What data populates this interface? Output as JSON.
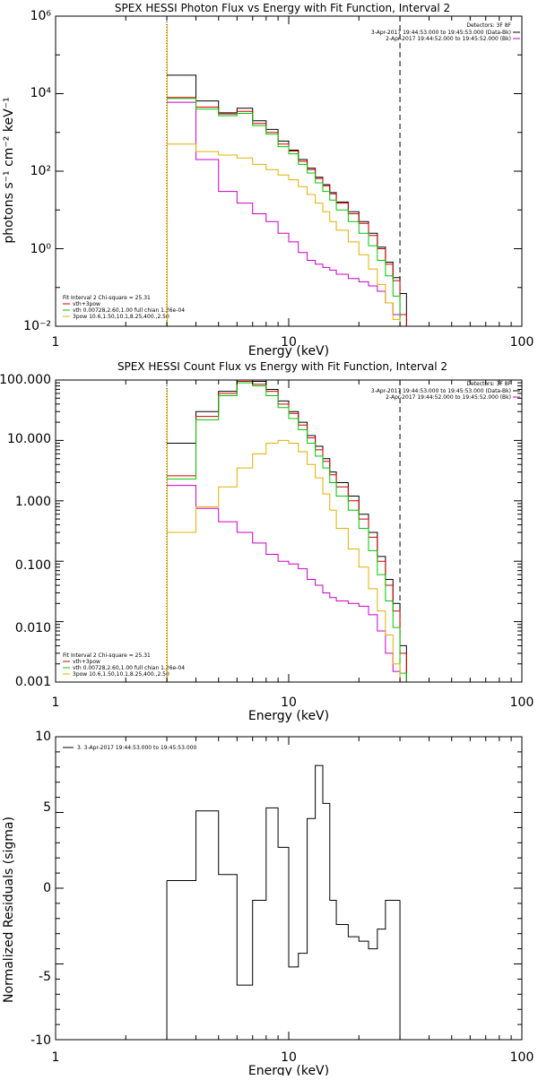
{
  "chart_data": [
    {
      "type": "line",
      "title": "SPEX HESSI Photon Flux vs Energy with Fit Function, Interval 2",
      "xlabel": "Energy (keV)",
      "ylabel": "photons s⁻¹ cm⁻² keV⁻¹",
      "xscale": "log",
      "yscale": "log",
      "xlim": [
        1,
        100
      ],
      "ylim": [
        0.01,
        1000000
      ],
      "x_tick_labels": [
        "1",
        "10",
        "100"
      ],
      "y_tick_labels": [
        "10⁻²",
        "10⁰",
        "10²",
        "10⁴",
        "10⁶"
      ],
      "legend_top_right": [
        "Detectors: 3F 8F",
        "3-Apr-2017 19:44:53.000 to 19:45:53.000 (Data-Bk)",
        "2-Apr-2017 19:44:52.000 to 19:45:52.000 (Bk)"
      ],
      "legend_bottom_left": [
        "Fit Interval 2   Chi-square = 25.31",
        "vth+3pow",
        "vth 0.00728,2.60,1.00  full chian 1.26e-04",
        "3pow 10.6,1.50,10.1,8.25,400.,2.50"
      ],
      "grid": false,
      "edges": [
        3.0,
        3.5,
        4.0,
        4.5,
        5.0,
        5.5,
        6.0,
        6.5,
        7.0,
        7.5,
        8.0,
        8.5,
        9.0,
        9.5,
        10.0,
        11.0,
        12.0,
        13.0,
        14.0,
        15.0,
        16.0,
        18.0,
        20.0,
        22.0,
        24.0,
        26.0,
        28.0,
        30.0,
        32.0
      ],
      "series": [
        {
          "name": "3-Apr-2017 19:44:53.000 to 19:45:53.000 (Data-Bk)",
          "color": "#000000",
          "values": [
            30000,
            30000,
            6500,
            6500,
            3200,
            3200,
            4200,
            4200,
            2000,
            2000,
            1200,
            1200,
            600,
            600,
            350,
            200,
            120,
            70,
            45,
            28,
            16,
            9,
            5,
            2.5,
            1.1,
            0.45,
            0.18,
            0.07
          ]
        },
        {
          "name": "2-Apr-2017 19:44:52.000 to 19:45:52.000 (Bk)",
          "color": "#c800c8",
          "values": [
            6000,
            6000,
            200,
            200,
            30,
            30,
            15,
            15,
            8,
            8,
            5,
            5,
            2.5,
            2.5,
            1.5,
            0.8,
            0.5,
            0.4,
            0.33,
            0.28,
            0.22,
            0.17,
            0.14,
            0.11,
            0.08,
            0.04,
            0.02,
            0.01
          ]
        },
        {
          "name": "vth+3pow",
          "color": "#d00000",
          "values": [
            8000,
            8000,
            4500,
            4500,
            3000,
            3000,
            3500,
            3500,
            1700,
            1700,
            1000,
            1000,
            500,
            500,
            330,
            180,
            110,
            65,
            42,
            26,
            15,
            8,
            4.5,
            2.2,
            1.0,
            0.4,
            0.15,
            0.02
          ]
        },
        {
          "name": "vth 0.00728,2.60,1.00  full chian 1.26e-04",
          "color": "#00c800",
          "values": [
            7500,
            7500,
            4000,
            4000,
            2700,
            2700,
            3100,
            3100,
            1500,
            1500,
            900,
            900,
            430,
            430,
            280,
            150,
            90,
            50,
            30,
            18,
            10,
            5,
            2.5,
            1.2,
            0.5,
            0.2,
            0.06,
            0.008
          ]
        },
        {
          "name": "3pow 10.6,1.50,10.1,8.25,400.,2.50",
          "color": "#e0b000",
          "values": [
            500,
            500,
            320,
            320,
            260,
            260,
            220,
            220,
            150,
            150,
            110,
            110,
            80,
            80,
            60,
            40,
            25,
            15,
            9,
            5,
            3,
            1.5,
            0.7,
            0.3,
            0.12,
            0.04,
            0.015,
            0.005
          ]
        }
      ]
    },
    {
      "type": "line",
      "title": "SPEX HESSI Count Flux vs Energy with Fit Function, Interval 2",
      "xlabel": "Energy (keV)",
      "ylabel": "",
      "xscale": "log",
      "yscale": "log",
      "xlim": [
        1,
        100
      ],
      "ylim": [
        0.001,
        100
      ],
      "x_tick_labels": [
        "1",
        "10",
        "100"
      ],
      "y_tick_labels": [
        "0.001",
        "0.010",
        "0.100",
        "1.000",
        "10.000",
        "100.000"
      ],
      "legend_top_right": [
        "Detectors: 3F 8F",
        "3-Apr-2017 19:44:53.000 to 19:45:53.000 (Data-Bk)",
        "2-Apr-2017 19:44:52.000 to 19:45:52.000 (Bk)"
      ],
      "legend_bottom_left": [
        "Fit Interval 2   Chi-square = 25.31",
        "vth+3pow",
        "vth 0.00728,2.60,1.00  full chian 1.26e-04",
        "3pow 10.6,1.50,10.1,8.25,400.,2.50"
      ],
      "grid": false,
      "edges": [
        3.0,
        3.5,
        4.0,
        4.5,
        5.0,
        5.5,
        6.0,
        6.5,
        7.0,
        7.5,
        8.0,
        8.5,
        9.0,
        9.5,
        10.0,
        11.0,
        12.0,
        13.0,
        14.0,
        15.0,
        16.0,
        18.0,
        20.0,
        22.0,
        24.0,
        26.0,
        28.0,
        30.0,
        32.0
      ],
      "series": [
        {
          "name": "3-Apr-2017 19:44:53.000 to 19:45:53.000 (Data-Bk)",
          "color": "#000000",
          "values": [
            9,
            9,
            30,
            30,
            65,
            65,
            100,
            100,
            95,
            95,
            70,
            70,
            45,
            45,
            30,
            20,
            12,
            8,
            5,
            3,
            2,
            1.2,
            0.6,
            0.3,
            0.12,
            0.05,
            0.02,
            0.004
          ]
        },
        {
          "name": "2-Apr-2017 19:44:52.000 to 19:45:52.000 (Bk)",
          "color": "#c800c8",
          "values": [
            1.8,
            1.8,
            0.75,
            0.75,
            0.45,
            0.45,
            0.3,
            0.3,
            0.2,
            0.2,
            0.13,
            0.13,
            0.1,
            0.1,
            0.09,
            0.075,
            0.05,
            0.04,
            0.03,
            0.025,
            0.022,
            0.02,
            0.018,
            0.013,
            0.007,
            0.003,
            0.0015,
            0.0008
          ]
        },
        {
          "name": "vth+3pow",
          "color": "#d00000",
          "values": [
            2.6,
            2.6,
            25,
            25,
            60,
            60,
            95,
            95,
            85,
            85,
            65,
            65,
            40,
            40,
            28,
            18,
            11,
            7,
            4.5,
            2.7,
            1.7,
            1,
            0.5,
            0.25,
            0.1,
            0.04,
            0.015,
            0.003
          ]
        },
        {
          "name": "vth 0.00728,2.60,1.00  full chian 1.26e-04",
          "color": "#00c800",
          "values": [
            2.3,
            2.3,
            22,
            22,
            55,
            55,
            90,
            90,
            80,
            80,
            55,
            55,
            35,
            35,
            23,
            15,
            9,
            5.5,
            3.5,
            2,
            1.2,
            0.7,
            0.35,
            0.15,
            0.06,
            0.022,
            0.008,
            0.0014
          ]
        },
        {
          "name": "3pow 10.6,1.50,10.1,8.25,400.,2.50",
          "color": "#e0b000",
          "values": [
            0.3,
            0.3,
            0.8,
            0.8,
            1.7,
            1.7,
            3.5,
            3.5,
            6,
            6,
            9,
            9,
            10,
            10,
            9,
            6.5,
            4,
            2.4,
            1.3,
            0.7,
            0.35,
            0.16,
            0.08,
            0.035,
            0.015,
            0.006,
            0.002,
            0.0006
          ]
        }
      ]
    },
    {
      "type": "line",
      "title": "",
      "xlabel": "Energy (keV)",
      "ylabel": "Normalized Residuals (sigma)",
      "xscale": "log",
      "yscale": "linear",
      "xlim": [
        1,
        100
      ],
      "ylim": [
        -10,
        10
      ],
      "x_tick_labels": [
        "1",
        "10",
        "100"
      ],
      "y_tick_labels": [
        "-10",
        "-5",
        "0",
        "5",
        "10"
      ],
      "legend_top_left": [
        "3.  3-Apr-2017 19:44:53.000 to 19:45:53.000"
      ],
      "grid": false,
      "edges": [
        3.0,
        3.5,
        4.0,
        4.5,
        5.0,
        5.5,
        6.0,
        6.5,
        7.0,
        7.5,
        8.0,
        8.5,
        9.0,
        9.5,
        10.0,
        11.0,
        12.0,
        13.0,
        14.0,
        15.0,
        16.0,
        18.0,
        20.0,
        22.0,
        24.0,
        26.0,
        28.0,
        30.0
      ],
      "series": [
        {
          "name": "3.  3-Apr-2017 19:44:53.000 to 19:45:53.000",
          "color": "#000000",
          "values": [
            0.5,
            0.5,
            5.1,
            5.1,
            0.9,
            0.9,
            -6.4,
            -6.4,
            -0.8,
            -0.8,
            5.3,
            5.3,
            2.7,
            2.7,
            -5.2,
            -4.3,
            4.6,
            8.1,
            5.6,
            -0.8,
            -2.4,
            -3.2,
            -3.5,
            -4.0,
            -2.7,
            -0.8,
            -0.8
          ]
        }
      ]
    }
  ]
}
